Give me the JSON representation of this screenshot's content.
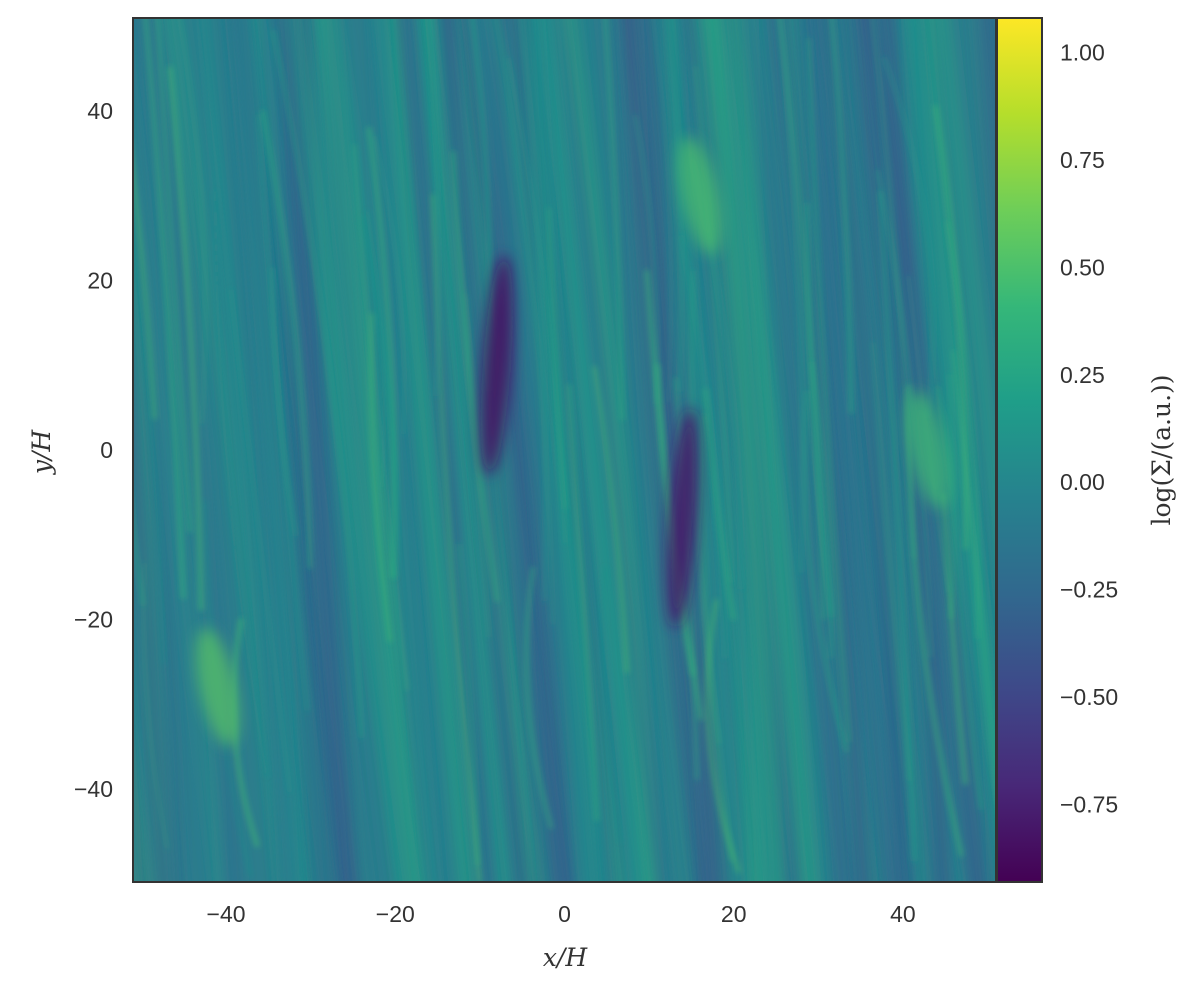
{
  "chart_data": {
    "type": "heatmap",
    "colormap": "viridis",
    "colormap_stops": [
      "#440154",
      "#482878",
      "#3e4989",
      "#31688e",
      "#26828e",
      "#1f9e89",
      "#35b779",
      "#6ece58",
      "#b5de2b",
      "#fde725"
    ],
    "xlabel": "x/H",
    "ylabel": "y/H",
    "colorbar_label": "log(Σ/(a.u.))",
    "xlim": [
      -51,
      51
    ],
    "ylim": [
      -51,
      51
    ],
    "clim": [
      -0.93,
      1.08
    ],
    "xticks": [
      -40,
      -20,
      0,
      20,
      40
    ],
    "yticks": [
      -40,
      -20,
      0,
      20,
      40
    ],
    "cbar_ticks": [
      1.0,
      0.75,
      0.5,
      0.25,
      0.0,
      -0.25,
      -0.5,
      -0.75
    ],
    "xtick_labels": [
      "−40",
      "−20",
      "0",
      "20",
      "40"
    ],
    "ytick_labels": [
      "40",
      "20",
      "0",
      "−20",
      "−40"
    ],
    "cbar_tick_labels": [
      "1.00",
      "0.75",
      "0.50",
      "0.25",
      "0.00",
      "−0.25",
      "−0.50",
      "−0.75"
    ],
    "field_description_values": {
      "background_mean": -0.05,
      "filament_tilt": "slightly tilted streaks, elongated along y",
      "low_density_regions": [
        {
          "x": -8,
          "y": 10,
          "value": -0.85
        },
        {
          "x": 14,
          "y": -8,
          "value": -0.8
        }
      ],
      "high_density_regions": [
        {
          "x": -41,
          "y": -28,
          "value": 0.55
        },
        {
          "x": 16,
          "y": 30,
          "value": 0.5
        },
        {
          "x": 43,
          "y": 0,
          "value": 0.45
        }
      ]
    }
  }
}
